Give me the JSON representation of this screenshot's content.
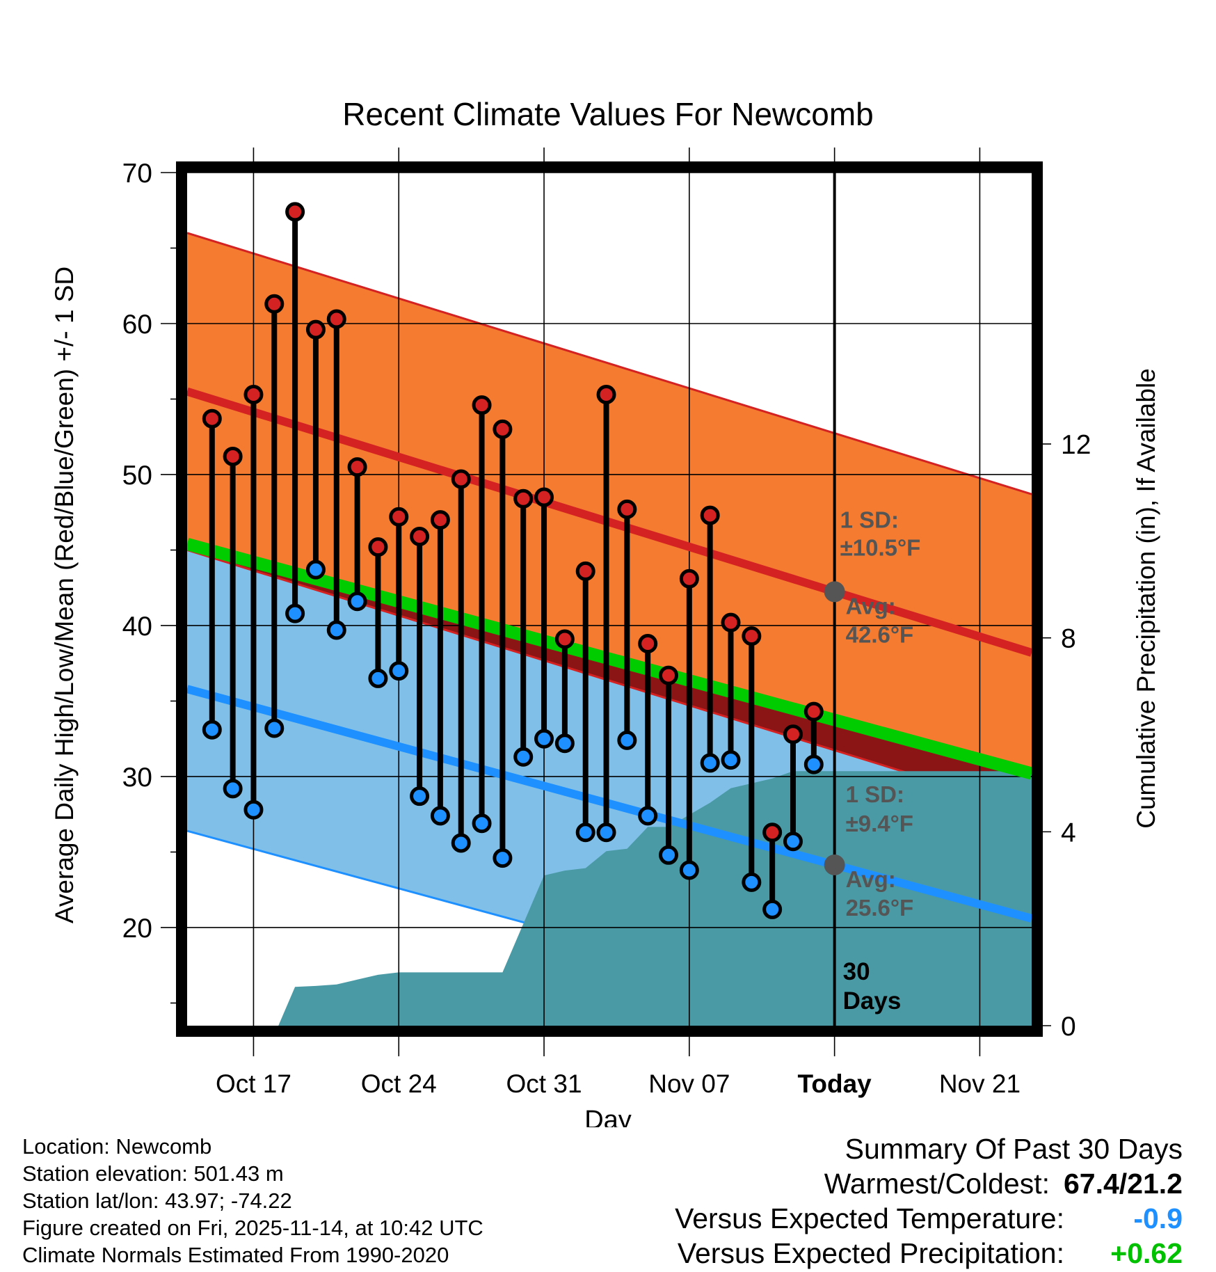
{
  "chart_data": {
    "type": "line",
    "title": "Recent Climate Values For Newcomb",
    "xlabel": "Day",
    "ylabel": "Average Daily High/Low/Mean (Red/Blue/Green) +/- 1 SD",
    "y2label": "Cumulative Precipitation (in), If Available",
    "x_tick_labels": [
      "Oct 17",
      "Oct 24",
      "Oct 31",
      "Nov 07",
      "Today",
      "Nov 21"
    ],
    "x_tick_days": [
      3,
      10,
      17,
      24,
      31,
      38
    ],
    "xlim": [
      -0.2,
      40.5
    ],
    "ylim": [
      13.5,
      70
    ],
    "y_ticks": [
      20,
      30,
      40,
      50,
      60,
      70
    ],
    "y2lim": [
      0,
      17.6
    ],
    "y2_ticks": [
      0,
      4,
      8,
      12
    ],
    "today_day": 31,
    "normal_high": {
      "start": 55.5,
      "end": 38.2,
      "sd": 10.5
    },
    "normal_low": {
      "start": 35.8,
      "end": 20.6,
      "sd": 9.4
    },
    "normal_mean": {
      "start": 45.4,
      "end": 30.2
    },
    "observed": {
      "days": [
        1,
        2,
        3,
        4,
        5,
        6,
        7,
        8,
        9,
        10,
        11,
        12,
        13,
        14,
        15,
        16,
        17,
        18,
        19,
        20,
        21,
        22,
        23,
        24,
        25,
        26,
        27,
        28,
        29,
        30
      ],
      "high": [
        53.7,
        51.2,
        55.3,
        61.3,
        67.4,
        59.6,
        60.3,
        50.5,
        45.2,
        47.2,
        45.9,
        47.0,
        49.7,
        54.6,
        53.0,
        48.4,
        48.5,
        39.1,
        43.6,
        55.3,
        47.7,
        38.8,
        36.7,
        43.1,
        47.3,
        40.2,
        39.3,
        26.3,
        32.8,
        34.3
      ],
      "low": [
        33.1,
        29.2,
        27.8,
        33.2,
        40.8,
        43.7,
        39.7,
        41.6,
        36.5,
        37.0,
        28.7,
        27.4,
        25.6,
        26.9,
        24.6,
        31.3,
        32.5,
        32.2,
        26.3,
        26.3,
        32.4,
        27.4,
        24.8,
        23.8,
        30.9,
        31.1,
        23.0,
        21.2,
        25.7,
        30.8
      ]
    },
    "precip": {
      "days": [
        0,
        4.2,
        5.0,
        6.0,
        7.0,
        8.0,
        9.0,
        10.0,
        11.0,
        12.0,
        13.0,
        14.0,
        15.0,
        16.0,
        17.0,
        18.0,
        19.0,
        20.0,
        21.0,
        22.0,
        23.0,
        24.0,
        25.0,
        26.0,
        27.0,
        28.0,
        29.0,
        30.0,
        31.0,
        40.5
      ],
      "values": [
        0,
        0,
        0.8,
        0.82,
        0.85,
        0.95,
        1.05,
        1.1,
        1.1,
        1.1,
        1.1,
        1.1,
        1.1,
        2.1,
        3.1,
        3.2,
        3.25,
        3.6,
        3.65,
        4.1,
        4.1,
        4.35,
        4.6,
        4.9,
        5.0,
        5.1,
        5.25,
        5.25,
        5.25,
        5.25
      ]
    },
    "annotations": {
      "high_sd_label": "1 SD:",
      "high_sd_value": "±10.5°F",
      "high_avg_label": "Avg:",
      "high_avg_value": "42.6°F",
      "low_sd_label": "1 SD:",
      "low_sd_value": "±9.4°F",
      "low_avg_label": "Avg:",
      "low_avg_value": "25.6°F",
      "days_num": "30",
      "days_word": "Days"
    }
  },
  "colors": {
    "high_band": "#f47b30",
    "high_line": "#d42222",
    "low_band": "#80c0e8",
    "low_line": "#1e90ff",
    "mean_line": "#00cc00",
    "warm_wedge": "#8b1414",
    "precip": "#4a9aa6",
    "annotation": "#555555"
  },
  "info": {
    "location": "Location: Newcomb",
    "elevation": "Station elevation: 501.43 m",
    "latlon": "Station lat/lon: 43.97; -74.22",
    "created": "Figure created on Fri, 2025-11-14, at 10:42 UTC",
    "normals": "Climate Normals Estimated From 1990-2020"
  },
  "summary": {
    "title": "Summary Of Past 30 Days",
    "warm_cold_label": "Warmest/Coldest:",
    "warm_cold_value": "67.4/21.2",
    "temp_label": "Versus Expected Temperature:",
    "temp_value": "-0.9",
    "precip_label": "Versus Expected Precipitation:",
    "precip_value": "+0.62"
  }
}
